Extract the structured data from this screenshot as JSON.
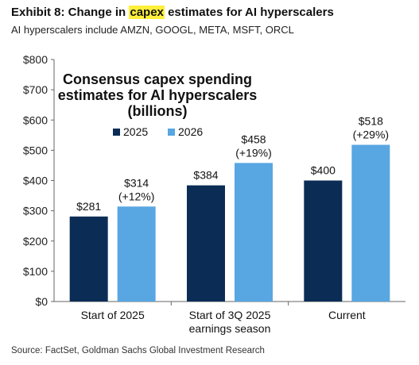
{
  "header": {
    "title_prefix": "Exhibit 8: Change in ",
    "title_highlight": "capex",
    "title_suffix": " estimates for AI hyperscalers",
    "subtitle": "AI hyperscalers include AMZN, GOOGL, META, MSFT, ORCL"
  },
  "footer": {
    "source": "Source: FactSet, Goldman Sachs Global Investment Research"
  },
  "colors": {
    "series_2025": "#0b2d55",
    "series_2026": "#58a6e2",
    "highlight": "#ffef3a",
    "axis": "#666666"
  },
  "chart_data": {
    "type": "bar",
    "title": [
      "Consensus capex spending",
      "estimates for AI hyperscalers",
      "(billions)"
    ],
    "categories": [
      [
        "Start of 2025"
      ],
      [
        "Start of 3Q 2025",
        "earnings season"
      ],
      [
        "Current"
      ]
    ],
    "series": [
      {
        "name": "2025",
        "values": [
          281,
          384,
          400
        ],
        "labels": [
          [
            "$281"
          ],
          [
            "$384"
          ],
          [
            "$400"
          ]
        ]
      },
      {
        "name": "2026",
        "values": [
          314,
          458,
          518
        ],
        "labels": [
          [
            "$314",
            "(+12%)"
          ],
          [
            "$458",
            "(+19%)"
          ],
          [
            "$518",
            "(+29%)"
          ]
        ]
      }
    ],
    "yticks": [
      "$0",
      "$100",
      "$200",
      "$300",
      "$400",
      "$500",
      "$600",
      "$700",
      "$800"
    ],
    "ylim": [
      0,
      800
    ],
    "grid": false,
    "legend": "top-left"
  }
}
